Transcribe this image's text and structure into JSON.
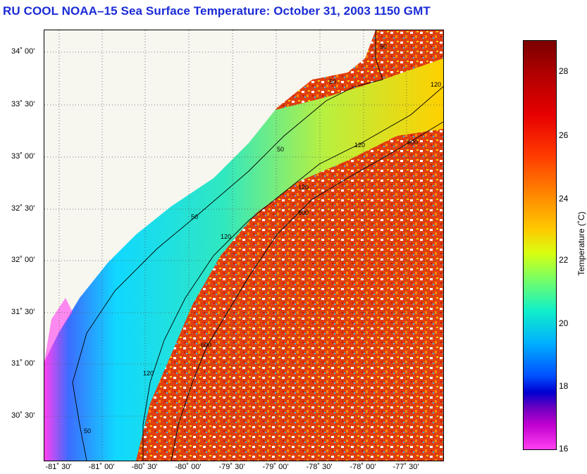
{
  "title": "RU COOL  NOAA–15  Sea Surface Temperature:  October 31, 2003 1150 GMT",
  "latitude_labels": [
    "34˚ 00'",
    "33˚ 30'",
    "33˚ 00'",
    "32˚ 30'",
    "32˚ 00'",
    "31˚ 30'",
    "31˚ 00'",
    "30˚ 30'"
  ],
  "longitude_labels": [
    "-81˚ 30'",
    "-81˚ 00'",
    "-80˚ 30'",
    "-80˚ 00'",
    "-79˚ 30'",
    "-79˚ 00'",
    "-78˚ 30'",
    "-78˚ 00'",
    "-77˚ 30'"
  ],
  "colorbar": {
    "label": "Temperature (˚C)",
    "ticks": [
      "28",
      "26",
      "24",
      "22",
      "20",
      "18",
      "16"
    ],
    "range": [
      16,
      29
    ]
  },
  "contour_labels": [
    "50",
    "120",
    "600",
    "50",
    "120",
    "600",
    "50",
    "120",
    "50",
    "120",
    "600",
    "50",
    "120"
  ],
  "colors": {
    "title": "#1a2bd6",
    "land": "#f7f7f0",
    "warm": "#e84a10",
    "shelf": "#18d8e0"
  }
}
